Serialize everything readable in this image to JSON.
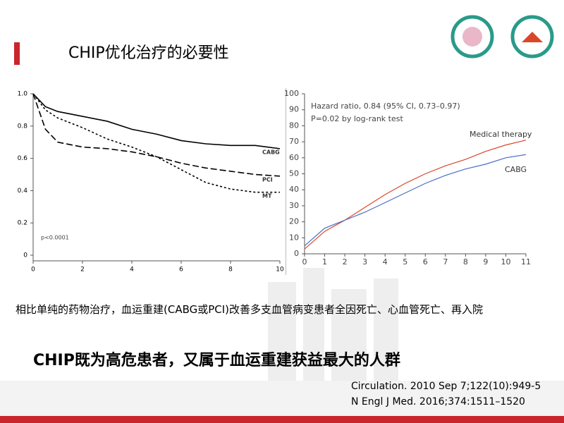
{
  "title": "CHIP优化治疗的必要性",
  "caption": "相比单纯的药物治疗，血运重建(CABG或PCI)改善多支血管病变患者全因死亡、心血管死亡、再入院",
  "highlight": "CHIP既为高危患者，又属于血运重建获益最大的人群",
  "references": [
    "Circulation. 2010 Sep 7;122(10):949-5",
    "N Engl J Med. 2016;374:1511–1520"
  ],
  "chart_data": [
    {
      "type": "line",
      "annotations": [
        "p<0.0001"
      ],
      "xlim": [
        0,
        10
      ],
      "xticks": [
        0,
        2,
        4,
        6,
        8,
        10
      ],
      "ylim": [
        0,
        1
      ],
      "yticks": [
        0,
        0.2,
        0.4,
        0.6,
        0.8,
        {
          "value": 1,
          "label": "1.0"
        }
      ],
      "x": [
        0,
        0.5,
        1,
        2,
        3,
        4,
        5,
        6,
        7,
        8,
        9,
        10
      ],
      "series": [
        {
          "name": "CABG",
          "color": "#000000",
          "style": "solid",
          "values": [
            1.0,
            0.92,
            0.89,
            0.86,
            0.83,
            0.78,
            0.75,
            0.71,
            0.69,
            0.68,
            0.68,
            0.66
          ]
        },
        {
          "name": "PCI",
          "color": "#000000",
          "style": "dashed",
          "values": [
            1.0,
            0.78,
            0.7,
            0.67,
            0.66,
            0.64,
            0.61,
            0.57,
            0.54,
            0.52,
            0.5,
            0.49
          ]
        },
        {
          "name": "MT",
          "color": "#000000",
          "style": "dotted",
          "values": [
            1.0,
            0.9,
            0.85,
            0.79,
            0.72,
            0.67,
            0.61,
            0.53,
            0.45,
            0.41,
            0.39,
            0.39
          ]
        }
      ]
    },
    {
      "type": "line",
      "annotations": [
        "Hazard ratio, 0.84 (95% CI, 0.73–0.97)",
        "P=0.02 by log-rank test"
      ],
      "xlim": [
        0,
        11
      ],
      "xticks": [
        0,
        1,
        2,
        3,
        4,
        5,
        6,
        7,
        8,
        9,
        10,
        11
      ],
      "ylim": [
        0,
        100
      ],
      "yticks": [
        0,
        10,
        20,
        30,
        40,
        50,
        60,
        70,
        80,
        90,
        100
      ],
      "x": [
        0,
        1,
        2,
        3,
        4,
        5,
        6,
        7,
        8,
        9,
        10,
        11
      ],
      "series": [
        {
          "name": "Medical therapy",
          "color": "#d9472b",
          "style": "solid",
          "values": [
            3,
            14,
            21,
            29,
            37,
            44,
            50,
            55,
            59,
            64,
            68,
            71
          ]
        },
        {
          "name": "CABG",
          "color": "#4a6fc4",
          "style": "solid",
          "values": [
            5,
            16,
            21,
            26,
            32,
            38,
            44,
            49,
            53,
            56,
            60,
            62
          ]
        }
      ]
    }
  ]
}
